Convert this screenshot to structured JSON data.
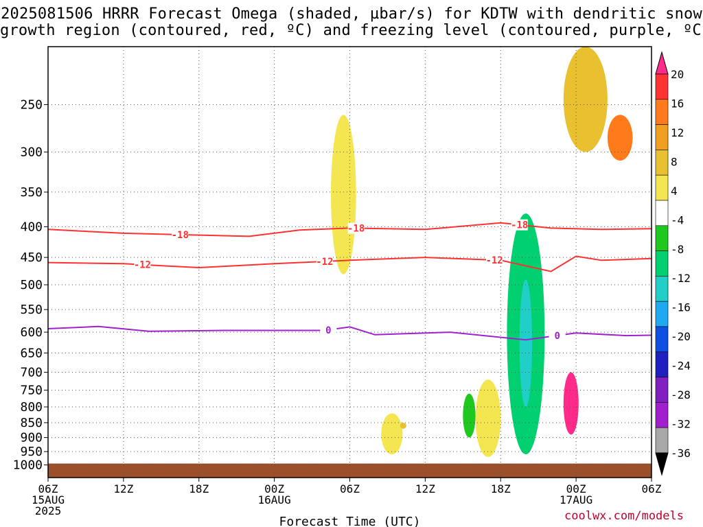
{
  "chart_data": {
    "type": "heatmap",
    "title_line1": "2025081506 HRRR Forecast Omega (shaded, µbar/s) for KDTW with dendritic snow",
    "title_line2": "growth region (contoured, red, ºC) and freezing level (contoured, purple, ºC)",
    "xlabel": "Forecast Time (UTC)",
    "ylabel": "",
    "y_scale": "log-pressure (hPa)",
    "y_ticks": [
      "250",
      "300",
      "350",
      "400",
      "450",
      "500",
      "550",
      "600",
      "650",
      "700",
      "750",
      "800",
      "850",
      "900",
      "950",
      "1000"
    ],
    "x_ticks": [
      {
        "label": "06Z",
        "date": "15AUG",
        "year": "2025"
      },
      {
        "label": "12Z",
        "date": "",
        "year": ""
      },
      {
        "label": "18Z",
        "date": "",
        "year": ""
      },
      {
        "label": "00Z",
        "date": "16AUG",
        "year": ""
      },
      {
        "label": "06Z",
        "date": "",
        "year": ""
      },
      {
        "label": "12Z",
        "date": "",
        "year": ""
      },
      {
        "label": "18Z",
        "date": "",
        "year": ""
      },
      {
        "label": "00Z",
        "date": "17AUG",
        "year": ""
      },
      {
        "label": "06Z",
        "date": "",
        "year": ""
      }
    ],
    "x_hours": [
      0,
      6,
      12,
      18,
      24,
      30,
      36,
      42,
      48
    ],
    "colorbar": {
      "labels": [
        "20",
        "16",
        "12",
        "8",
        "4",
        "-4",
        "-8",
        "-12",
        "-16",
        "-20",
        "-24",
        "-28",
        "-32",
        "-36"
      ],
      "colors": [
        "#ff2a8a",
        "#ff3333",
        "#ff7a1a",
        "#f0a020",
        "#e8c030",
        "#f4e650",
        "#ffffff",
        "#1ec81e",
        "#00d070",
        "#20d0c8",
        "#20a8f0",
        "#1050e0",
        "#2020c0",
        "#8020c0",
        "#a020d0",
        "#a8a8a8",
        "#000000"
      ]
    },
    "grid": true,
    "contours": [
      {
        "level": "-18",
        "color": "#ff3030",
        "hour_pressure": [
          [
            0,
            404
          ],
          [
            6,
            410
          ],
          [
            10,
            412
          ],
          [
            16,
            415
          ],
          [
            20,
            405
          ],
          [
            24,
            402
          ],
          [
            30,
            404
          ],
          [
            36,
            394
          ],
          [
            40,
            402
          ],
          [
            44,
            404
          ],
          [
            48,
            403
          ]
        ],
        "labels_at_hours": [
          10.5,
          24.5,
          37.5
        ]
      },
      {
        "level": "-12",
        "color": "#ff3030",
        "hour_pressure": [
          [
            0,
            459
          ],
          [
            6,
            461
          ],
          [
            12,
            468
          ],
          [
            18,
            461
          ],
          [
            24,
            455
          ],
          [
            30,
            450
          ],
          [
            36,
            455
          ],
          [
            40,
            475
          ],
          [
            42,
            448
          ],
          [
            44,
            455
          ],
          [
            48,
            452
          ]
        ],
        "labels_at_hours": [
          7.5,
          22,
          35.5
        ]
      },
      {
        "level": "0",
        "color": "#a020d0",
        "hour_pressure": [
          [
            0,
            592
          ],
          [
            4,
            587
          ],
          [
            8,
            598
          ],
          [
            14,
            596
          ],
          [
            22,
            596
          ],
          [
            24,
            588
          ],
          [
            26,
            606
          ],
          [
            32,
            600
          ],
          [
            38,
            618
          ],
          [
            42,
            602
          ],
          [
            46,
            608
          ],
          [
            48,
            607
          ]
        ],
        "labels_at_hours": [
          22.3,
          40.5
        ]
      }
    ],
    "shaded_regions": [
      {
        "value_range": [
          4,
          8
        ],
        "hour": [
          26.5,
          28.2
        ],
        "pressure": [
          960,
          820
        ],
        "color": "#f4e650"
      },
      {
        "value_range": [
          8,
          12
        ],
        "hour": [
          28.0,
          28.5
        ],
        "pressure": [
          870,
          850
        ],
        "color": "#e8c030"
      },
      {
        "value_range": [
          4,
          8
        ],
        "hour": [
          22.5,
          24.5
        ],
        "pressure": [
          480,
          260
        ],
        "color": "#f4e650"
      },
      {
        "value_range": [
          -8,
          -4
        ],
        "hour": [
          33.0,
          34.0
        ],
        "pressure": [
          900,
          760
        ],
        "color": "#1ec81e"
      },
      {
        "value_range": [
          4,
          8
        ],
        "hour": [
          34.0,
          36.0
        ],
        "pressure": [
          970,
          720
        ],
        "color": "#f4e650"
      },
      {
        "value_range": [
          -12,
          -8
        ],
        "hour": [
          36.5,
          39.5
        ],
        "pressure": [
          960,
          380
        ],
        "color": "#00d070"
      },
      {
        "value_range": [
          -16,
          -12
        ],
        "hour": [
          37.5,
          38.5
        ],
        "pressure": [
          800,
          490
        ],
        "color": "#20d0c8"
      },
      {
        "value_range": [
          16,
          20
        ],
        "hour": [
          41.0,
          42.2
        ],
        "pressure": [
          890,
          700
        ],
        "color": "#ff2a8a"
      },
      {
        "value_range": [
          8,
          12
        ],
        "hour": [
          41.0,
          44.5
        ],
        "pressure": [
          300,
          200
        ],
        "color": "#e8c030"
      },
      {
        "value_range": [
          12,
          16
        ],
        "hour": [
          44.5,
          46.5
        ],
        "pressure": [
          310,
          260
        ],
        "color": "#ff7a1a"
      }
    ],
    "surface_below_hPa": 1000,
    "surface_color": "#9b4f2a"
  },
  "credit": "coolwx.com/models"
}
